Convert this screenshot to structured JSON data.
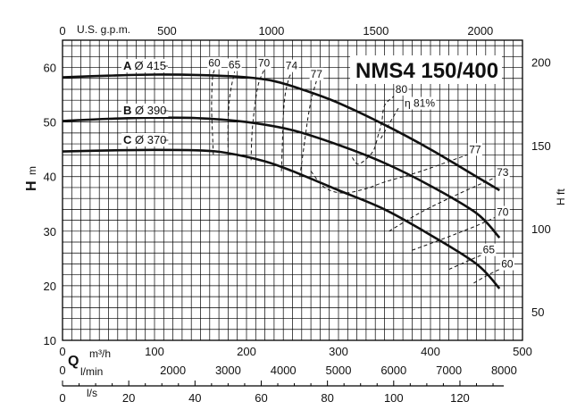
{
  "chart_data": {
    "type": "line",
    "title": "NMS4 150/400",
    "ylabel": "H",
    "ylabel_unit": "m",
    "y2label": "H ft",
    "x_primary": {
      "label": "Q",
      "unit": "m³/h",
      "range": [
        0,
        500
      ],
      "ticks": [
        "0",
        "100",
        "200",
        "300",
        "400",
        "500"
      ]
    },
    "x_lmin": {
      "unit": "l/min",
      "ticks": [
        "0",
        "2000",
        "3000",
        "4000",
        "5000",
        "6000",
        "7000",
        "8000"
      ]
    },
    "x_ls": {
      "unit": "l/s",
      "ticks": [
        "0",
        "20",
        "40",
        "60",
        "80",
        "100",
        "120"
      ]
    },
    "x_gpm": {
      "unit": "U.S. g.p.m.",
      "ticks": [
        "0",
        "500",
        "1000",
        "1500",
        "2000"
      ]
    },
    "y_range": [
      10,
      65
    ],
    "y_ticks": [
      "10",
      "20",
      "30",
      "40",
      "50",
      "60"
    ],
    "y2_ticks": [
      "50",
      "100",
      "150",
      "200"
    ],
    "series": [
      {
        "name": "A",
        "diameter": "Ø 415",
        "points": [
          [
            0,
            58.2
          ],
          [
            50,
            58.5
          ],
          [
            100,
            58.7
          ],
          [
            150,
            58.6
          ],
          [
            200,
            58.2
          ],
          [
            230,
            57.5
          ],
          [
            260,
            56
          ],
          [
            300,
            53.5
          ],
          [
            350,
            49.5
          ],
          [
            400,
            45
          ],
          [
            450,
            40
          ],
          [
            475,
            37.5
          ]
        ]
      },
      {
        "name": "B",
        "diameter": "Ø 390",
        "points": [
          [
            0,
            50.2
          ],
          [
            50,
            50.6
          ],
          [
            100,
            50.8
          ],
          [
            150,
            50.7
          ],
          [
            200,
            50
          ],
          [
            250,
            48.5
          ],
          [
            300,
            45.8
          ],
          [
            350,
            42.5
          ],
          [
            400,
            38.3
          ],
          [
            450,
            33.3
          ],
          [
            475,
            28.8
          ]
        ]
      },
      {
        "name": "C",
        "diameter": "Ø 370",
        "points": [
          [
            0,
            44.6
          ],
          [
            50,
            44.8
          ],
          [
            100,
            44.9
          ],
          [
            150,
            44.8
          ],
          [
            180,
            44.3
          ],
          [
            220,
            42.8
          ],
          [
            250,
            41
          ],
          [
            300,
            37.5
          ],
          [
            350,
            34
          ],
          [
            400,
            29.3
          ],
          [
            450,
            24
          ],
          [
            475,
            19.5
          ]
        ]
      }
    ],
    "efficiency": {
      "prefix": "η",
      "lines": [
        {
          "label": "60",
          "points": [
            [
              164,
              44
            ],
            [
              163,
              48
            ],
            [
              162,
              53
            ],
            [
              163,
              58
            ],
            [
              165,
              59.5
            ]
          ]
        },
        {
          "label": "65",
          "points": [
            [
              180,
              44.2
            ],
            [
              180,
              50
            ],
            [
              182,
              55
            ],
            [
              187,
              59.2
            ]
          ]
        },
        {
          "label": "70",
          "points": [
            [
              205,
              43
            ],
            [
              206,
              48
            ],
            [
              209,
              53
            ],
            [
              213,
              57
            ],
            [
              219,
              59.5
            ]
          ]
        },
        {
          "label": "74",
          "points": [
            [
              238,
              41
            ],
            [
              239,
              46
            ],
            [
              240,
              51
            ],
            [
              242,
              55
            ],
            [
              246,
              58
            ],
            [
              249,
              59
            ]
          ]
        },
        {
          "label": "77",
          "points": [
            [
              258,
              40
            ],
            [
              262,
              45
            ],
            [
              267,
              51
            ],
            [
              271,
              54.5
            ],
            [
              276,
              57.5
            ]
          ]
        },
        {
          "label": "80",
          "points": [
            [
              315,
              43.5
            ],
            [
              322,
              42.3
            ],
            [
              337,
              44.5
            ],
            [
              343,
              47.5
            ],
            [
              347,
              50
            ],
            [
              350,
              53
            ],
            [
              360,
              54.7
            ]
          ]
        },
        {
          "label": "81%",
          "points": [
            [
              346,
              47
            ],
            [
              358,
              50.5
            ],
            [
              366,
              52.8
            ]
          ]
        },
        {
          "label": "77",
          "points": [
            [
              270,
              41
            ],
            [
              285,
              38
            ],
            [
              305,
              37
            ],
            [
              330,
              37.8
            ],
            [
              350,
              39
            ],
            [
              390,
              41
            ],
            [
              440,
              44
            ]
          ]
        },
        {
          "label": "73",
          "points": [
            [
              355,
              30
            ],
            [
              390,
              33.5
            ],
            [
              430,
              36.8
            ],
            [
              470,
              39.8
            ]
          ]
        },
        {
          "label": "70",
          "points": [
            [
              380,
              26.5
            ],
            [
              420,
              29
            ],
            [
              450,
              31
            ],
            [
              470,
              32.5
            ]
          ]
        },
        {
          "label": "65",
          "points": [
            [
              420,
              23
            ],
            [
              440,
              24.5
            ],
            [
              455,
              25.6
            ]
          ]
        },
        {
          "label": "60",
          "points": [
            [
              447,
              20.5
            ],
            [
              465,
              22.2
            ],
            [
              475,
              23
            ]
          ]
        }
      ]
    }
  }
}
